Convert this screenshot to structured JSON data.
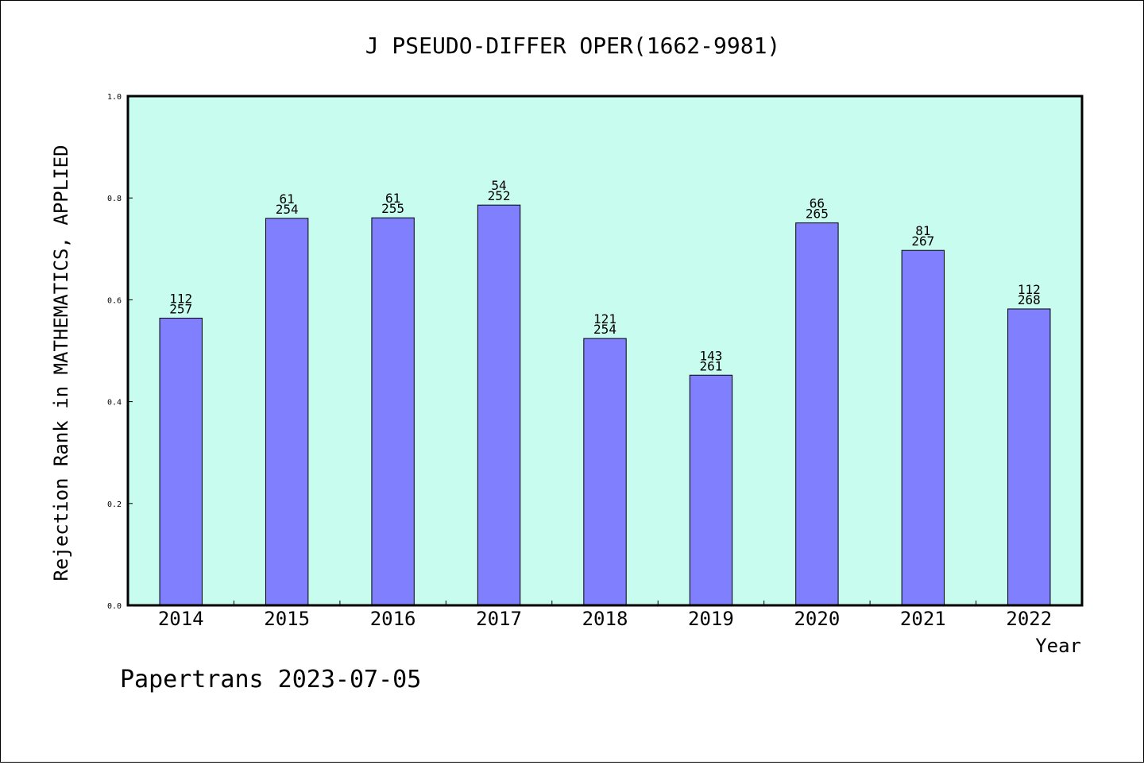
{
  "chart_data": {
    "type": "bar",
    "title": "J PSEUDO-DIFFER OPER(1662-9981)",
    "xlabel": "Year",
    "ylabel": "Rejection Rank in MATHEMATICS, APPLIED",
    "ylim": [
      0,
      1.0
    ],
    "yticks": [
      "0.0",
      "0.2",
      "0.4",
      "0.6",
      "0.8",
      "1.0"
    ],
    "categories": [
      "2014",
      "2015",
      "2016",
      "2017",
      "2018",
      "2019",
      "2020",
      "2021",
      "2022"
    ],
    "values": [
      0.564,
      0.76,
      0.761,
      0.786,
      0.524,
      0.452,
      0.751,
      0.697,
      0.582
    ],
    "labels_top": [
      "112",
      "61",
      "61",
      "54",
      "121",
      "143",
      "66",
      "81",
      "112"
    ],
    "labels_bottom": [
      "257",
      "254",
      "255",
      "252",
      "254",
      "261",
      "265",
      "267",
      "268"
    ],
    "grid": false,
    "colors": {
      "plot_bg": "#c8fcee",
      "bar": "#8080ff",
      "axis": "#000000"
    }
  },
  "footer": "Papertrans 2023-07-05"
}
